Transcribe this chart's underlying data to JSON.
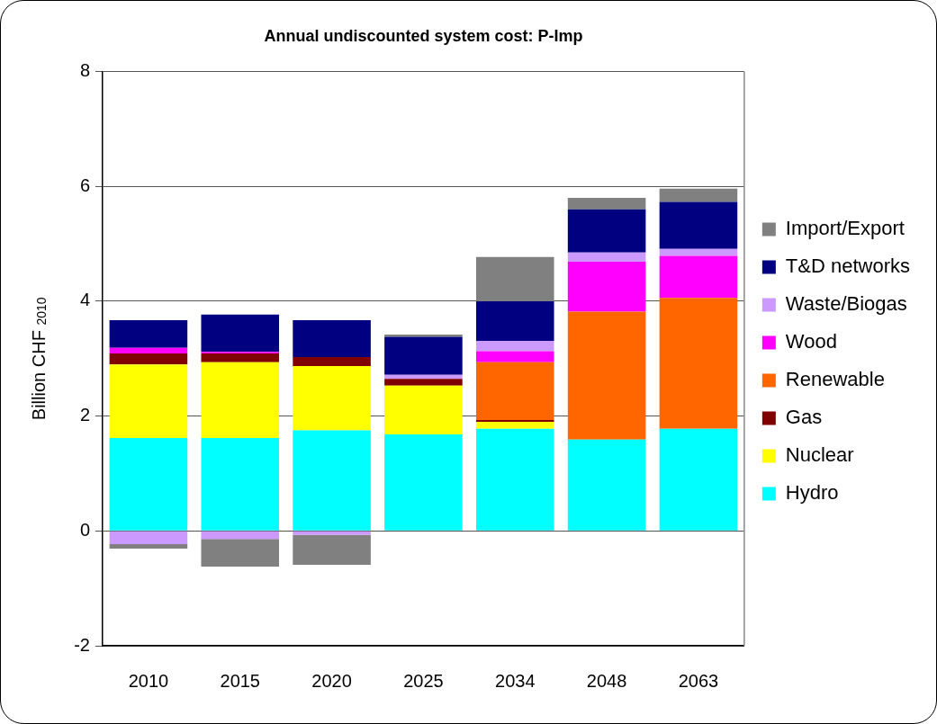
{
  "chart_data": {
    "type": "bar",
    "title": "Annual undiscounted system cost: P-Imp",
    "ylabel": "Billion CHF $_{2010}$",
    "categories": [
      "2010",
      "2015",
      "2020",
      "2025",
      "2034",
      "2048",
      "2063"
    ],
    "stacked": true,
    "ylim": [
      -2,
      8
    ],
    "yticks": [
      -2,
      0,
      2,
      4,
      6,
      8
    ],
    "grid": "y",
    "legend": "right",
    "series": [
      {
        "name": "Hydro",
        "color": "#00ffff",
        "values": [
          1.62,
          1.62,
          1.75,
          1.68,
          1.78,
          1.59,
          1.78
        ]
      },
      {
        "name": "Nuclear",
        "color": "#ffff00",
        "values": [
          1.28,
          1.32,
          1.12,
          0.85,
          0.12,
          0,
          0
        ]
      },
      {
        "name": "Gas",
        "color": "#800000",
        "values": [
          0.19,
          0.15,
          0.16,
          0.12,
          0.03,
          0,
          0
        ]
      },
      {
        "name": "Renewable",
        "color": "#ff6600",
        "values": [
          0,
          0,
          0,
          0,
          1.01,
          2.23,
          2.28
        ]
      },
      {
        "name": "Wood",
        "color": "#ff00ff",
        "values": [
          0.1,
          0.03,
          0,
          0,
          0.19,
          0.87,
          0.73
        ]
      },
      {
        "name": "Waste/Biogas",
        "color": "#cc99ff",
        "values": [
          -0.23,
          -0.14,
          -0.07,
          0.07,
          0.18,
          0.16,
          0.12
        ]
      },
      {
        "name": "T&D networks",
        "color": "#000080",
        "values": [
          0.48,
          0.65,
          0.64,
          0.66,
          0.69,
          0.75,
          0.82
        ]
      },
      {
        "name": "Import/Export",
        "color": "#808080",
        "values": [
          -0.08,
          -0.48,
          -0.52,
          0.04,
          0.77,
          0.2,
          0.23
        ]
      }
    ]
  }
}
